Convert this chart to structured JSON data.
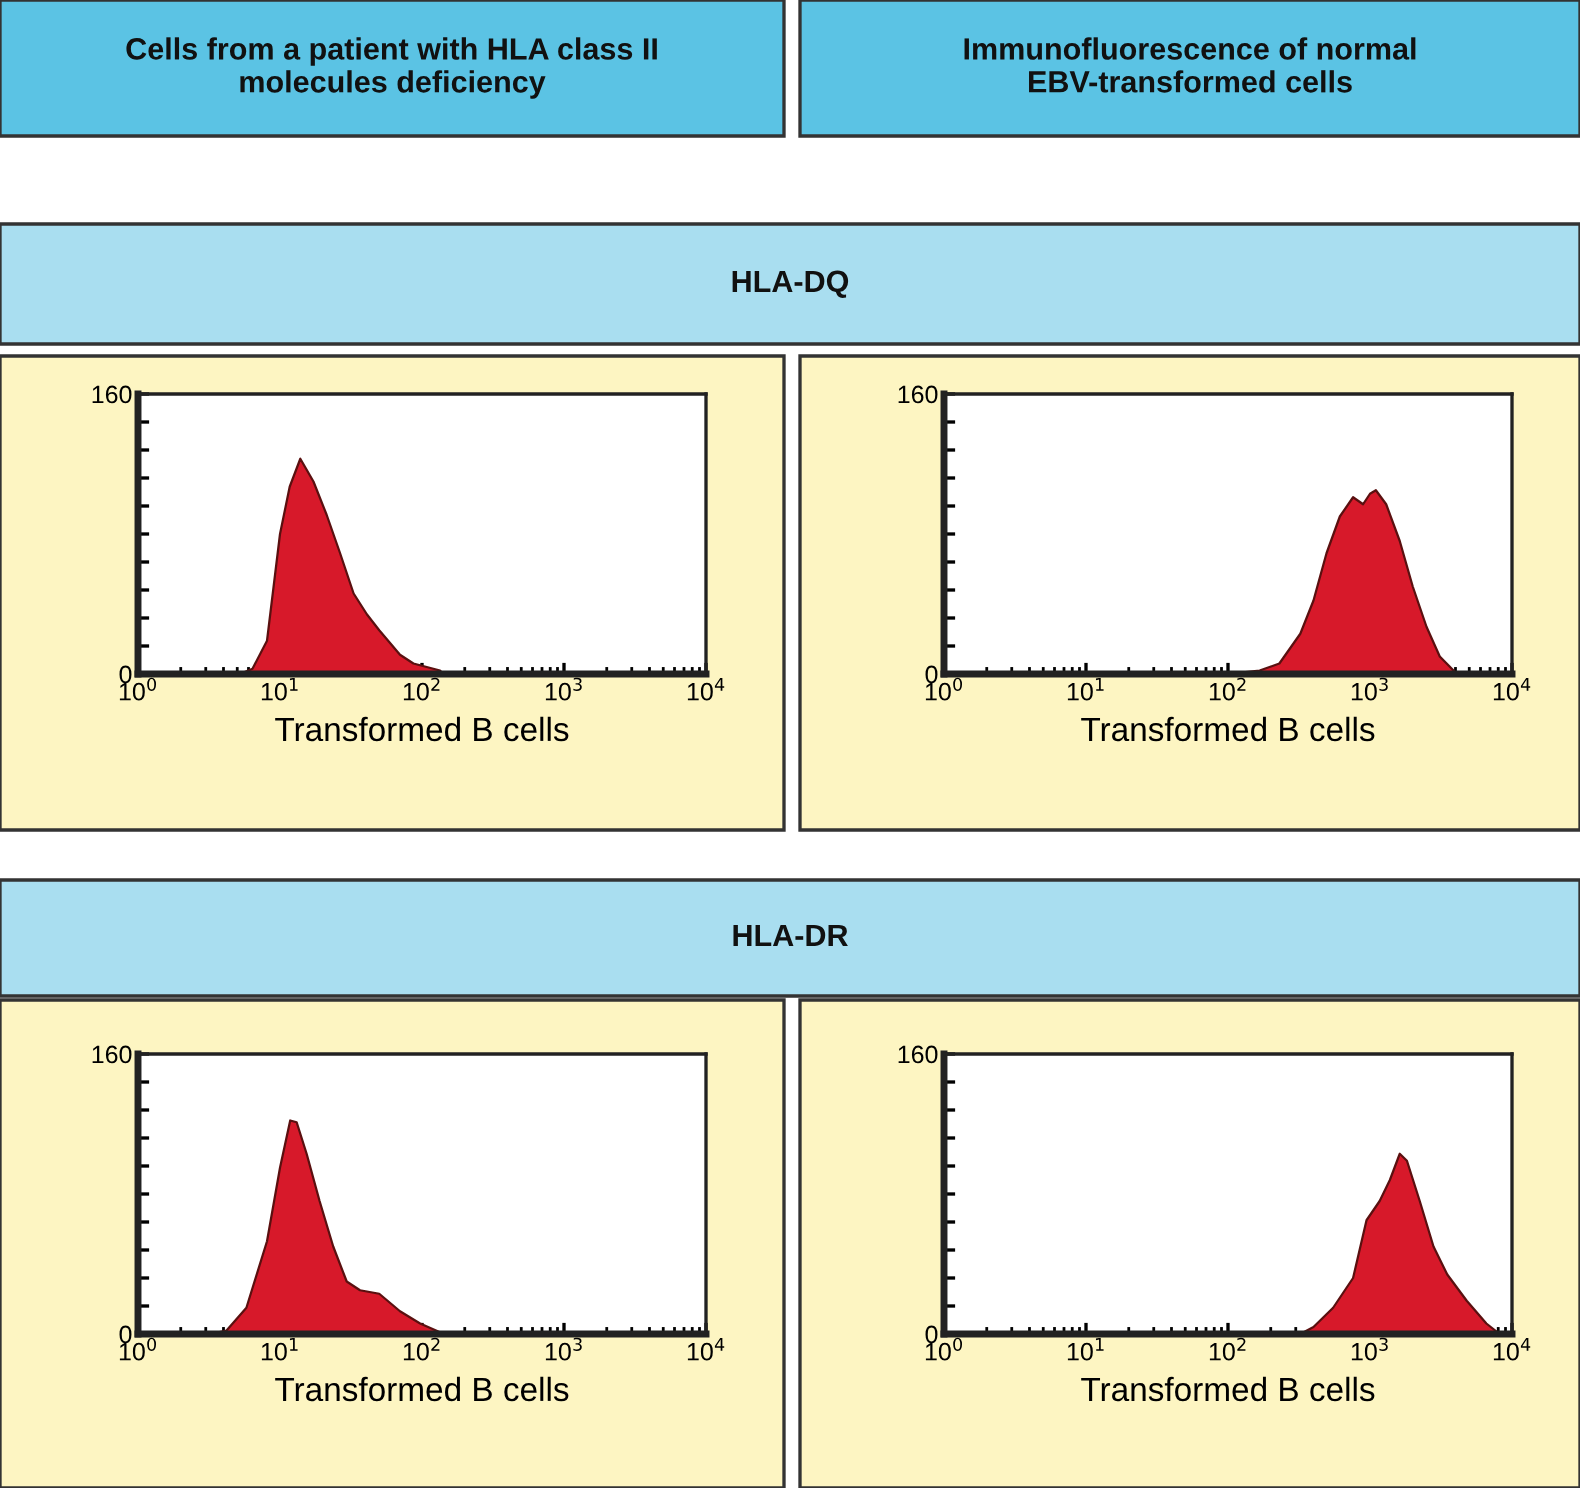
{
  "chart_data": [
    {
      "type": "area",
      "title": "Cells from a patient with HLA class II\nmolecules deficiency",
      "subtitle": "HLA-DQ",
      "xlabel": "Transformed B cells",
      "log": "x",
      "grid": false,
      "legend": false,
      "xlim": [
        1,
        10000
      ],
      "xticks": [
        {
          "value": 1,
          "label": "10$^{0}$"
        },
        {
          "value": 10,
          "label": "10$^{1}$"
        },
        {
          "value": 100,
          "label": "10$^{2}$"
        },
        {
          "value": 1000,
          "label": "10$^{3}$"
        },
        {
          "value": 10000,
          "label": "10$^{4}$"
        }
      ],
      "ylim": [
        0,
        160
      ],
      "yticks": [
        0,
        {
          "value": 16,
          "label": null
        },
        {
          "value": 32,
          "label": null
        },
        {
          "value": 48,
          "label": null
        },
        {
          "value": 64,
          "label": null
        },
        {
          "value": 80,
          "label": null
        },
        {
          "value": 96,
          "label": null
        },
        {
          "value": 112,
          "label": null
        },
        {
          "value": 128,
          "label": null
        },
        {
          "value": 144,
          "label": null
        },
        160
      ],
      "series": [
        {
          "color": "#d7192a",
          "x": [
            5.2,
            6.4,
            8.1,
            10,
            11.7,
            13.9,
            17.2,
            21.3,
            26.5,
            33,
            41,
            50,
            70,
            87,
            134,
            140
          ],
          "values": [
            0,
            3,
            19,
            80,
            107,
            123,
            110,
            91,
            69,
            46,
            34,
            25,
            11,
            6,
            2,
            0
          ]
        }
      ]
    },
    {
      "type": "area",
      "title": "Immunofluorescence of normal\nEBV-transformed cells",
      "xlabel": "Transformed B cells",
      "log": "x",
      "grid": false,
      "legend": false,
      "xlim": [
        1,
        10000
      ],
      "xticks": [
        {
          "value": 1,
          "label": "10$^{0}$"
        },
        {
          "value": 10,
          "label": "10$^{1}$"
        },
        {
          "value": 100,
          "label": "10$^{2}$"
        },
        {
          "value": 1000,
          "label": "10$^{3}$"
        },
        {
          "value": 10000,
          "label": "10$^{4}$"
        }
      ],
      "ylim": [
        0,
        160
      ],
      "yticks": [
        0,
        {
          "value": 16,
          "label": null
        },
        {
          "value": 32,
          "label": null
        },
        {
          "value": 48,
          "label": null
        },
        {
          "value": 64,
          "label": null
        },
        {
          "value": 80,
          "label": null
        },
        {
          "value": 96,
          "label": null
        },
        {
          "value": 112,
          "label": null
        },
        {
          "value": 128,
          "label": null
        },
        {
          "value": 144,
          "label": null
        },
        160
      ],
      "series": [
        {
          "color": "#d7192a",
          "x": [
            97,
            167,
            230,
            323,
            400,
            494,
            613,
            760,
            894,
            1000,
            1100,
            1300,
            1620,
            2000,
            2500,
            3100,
            4100
          ],
          "values": [
            0,
            2,
            6,
            23,
            42,
            69,
            90,
            101,
            97,
            103,
            105,
            97,
            76,
            50,
            27,
            10,
            0
          ]
        }
      ]
    },
    {
      "type": "area",
      "subtitle": "HLA-DR",
      "xlabel": "Transformed B cells",
      "log": "x",
      "grid": false,
      "legend": false,
      "xlim": [
        1,
        10000
      ],
      "xticks": [
        {
          "value": 1,
          "label": "10$^{0}$"
        },
        {
          "value": 10,
          "label": "10$^{1}$"
        },
        {
          "value": 100,
          "label": "10$^{2}$"
        },
        {
          "value": 1000,
          "label": "10$^{3}$"
        },
        {
          "value": 10000,
          "label": "10$^{4}$"
        }
      ],
      "ylim": [
        0,
        160
      ],
      "yticks": [
        0,
        {
          "value": 16,
          "label": null
        },
        {
          "value": 32,
          "label": null
        },
        {
          "value": 48,
          "label": null
        },
        {
          "value": 64,
          "label": null
        },
        {
          "value": 80,
          "label": null
        },
        {
          "value": 96,
          "label": null
        },
        {
          "value": 112,
          "label": null
        },
        {
          "value": 128,
          "label": null
        },
        {
          "value": 144,
          "label": null
        },
        160
      ],
      "series": [
        {
          "color": "#d7192a",
          "x": [
            3.2,
            4.2,
            5.8,
            8.1,
            10,
            11.8,
            13.1,
            15.4,
            19,
            23.7,
            29.5,
            36.6,
            50,
            70,
            97,
            134,
            205
          ],
          "values": [
            0,
            2,
            15,
            53,
            95,
            122,
            121,
            103,
            76,
            50,
            30,
            25,
            23,
            13,
            6,
            1,
            0
          ]
        }
      ]
    },
    {
      "type": "area",
      "xlabel": "Transformed B cells",
      "log": "x",
      "grid": false,
      "legend": false,
      "xlim": [
        1,
        10000
      ],
      "xticks": [
        {
          "value": 1,
          "label": "10$^{0}$"
        },
        {
          "value": 10,
          "label": "10$^{1}$"
        },
        {
          "value": 100,
          "label": "10$^{2}$"
        },
        {
          "value": 1000,
          "label": "10$^{3}$"
        },
        {
          "value": 10000,
          "label": "10$^{4}$"
        }
      ],
      "ylim": [
        0,
        160
      ],
      "yticks": [
        0,
        {
          "value": 16,
          "label": null
        },
        {
          "value": 32,
          "label": null
        },
        {
          "value": 48,
          "label": null
        },
        {
          "value": 64,
          "label": null
        },
        {
          "value": 80,
          "label": null
        },
        {
          "value": 96,
          "label": null
        },
        {
          "value": 112,
          "label": null
        },
        {
          "value": 128,
          "label": null
        },
        {
          "value": 144,
          "label": null
        },
        160
      ],
      "series": [
        {
          "color": "#d7192a",
          "x": [
            323,
            400,
            550,
            760,
            945,
            1170,
            1380,
            1620,
            1820,
            2240,
            2800,
            3500,
            4800,
            6600,
            8200
          ],
          "values": [
            0,
            4,
            15,
            32,
            65,
            76,
            88,
            103,
            99,
            76,
            50,
            34,
            19,
            6,
            0
          ]
        }
      ]
    }
  ]
}
